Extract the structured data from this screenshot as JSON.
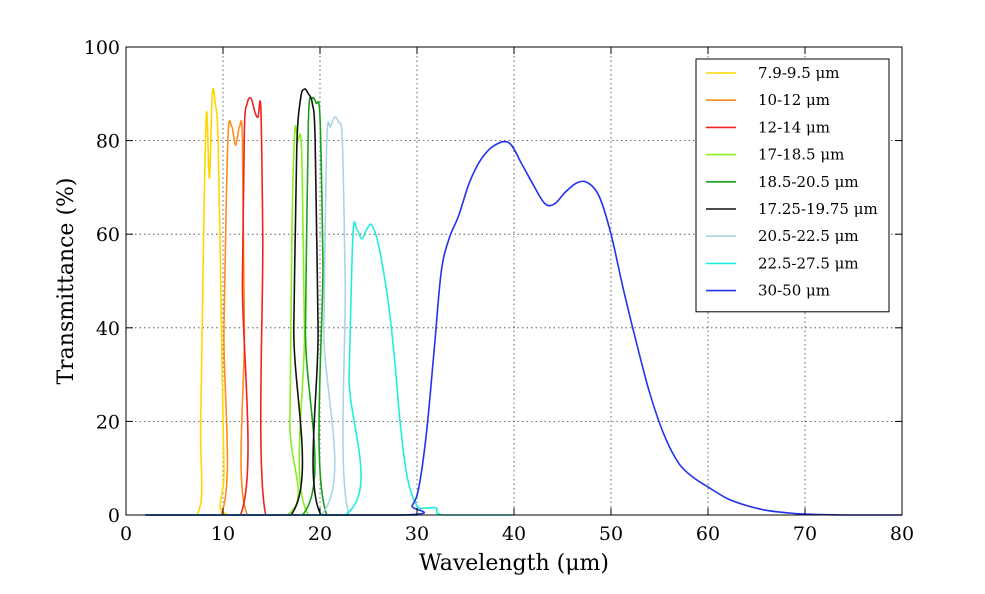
{
  "chart_data": {
    "type": "line",
    "xlabel": "Wavelength (μm)",
    "ylabel": "Transmittance (%)",
    "xlim": [
      0,
      80
    ],
    "ylim": [
      0,
      100
    ],
    "xticks": [
      0,
      10,
      20,
      30,
      40,
      50,
      60,
      70,
      80
    ],
    "yticks": [
      0,
      20,
      40,
      60,
      80,
      100
    ],
    "grid": true,
    "legend_position": "top-right",
    "series": [
      {
        "name": "7.9-9.5 μm",
        "color": "#ffd700",
        "x": [
          2,
          7.3,
          7.7,
          8.0,
          8.3,
          8.6,
          8.9,
          9.2,
          9.5,
          9.8,
          10.1,
          10.5,
          20
        ],
        "y": [
          0,
          0,
          20,
          60,
          86,
          72,
          90,
          88,
          80,
          45,
          10,
          0,
          0
        ]
      },
      {
        "name": "10-12 μm",
        "color": "#ff8c1a",
        "x": [
          2,
          9.8,
          10.1,
          10.5,
          10.9,
          11.3,
          11.7,
          12.0,
          12.2,
          12.5,
          20
        ],
        "y": [
          0,
          0,
          40,
          80,
          83,
          79,
          83,
          80,
          40,
          0,
          0
        ]
      },
      {
        "name": "12-14 μm",
        "color": "#ee2222",
        "x": [
          2,
          11.8,
          12.0,
          12.2,
          12.5,
          12.9,
          13.3,
          13.6,
          13.9,
          14.1,
          14.4,
          20
        ],
        "y": [
          0,
          0,
          50,
          82,
          88,
          89,
          86,
          85,
          87,
          60,
          0,
          0
        ]
      },
      {
        "name": "17-18.5 μm",
        "color": "#88ee22",
        "x": [
          2,
          16.6,
          16.9,
          17.1,
          17.4,
          17.7,
          18.1,
          18.4,
          18.8,
          30
        ],
        "y": [
          0,
          0,
          20,
          60,
          82,
          80,
          78,
          40,
          0,
          0
        ]
      },
      {
        "name": "18.5-20.5 μm",
        "color": "#1a9f1a",
        "x": [
          2,
          18.2,
          18.5,
          18.8,
          19.2,
          19.6,
          20.0,
          20.3,
          20.7,
          30
        ],
        "y": [
          0,
          0,
          40,
          84,
          89,
          88,
          85,
          55,
          0,
          0
        ]
      },
      {
        "name": "17.25-19.75 μm",
        "color": "#111111",
        "x": [
          2,
          17.0,
          17.3,
          17.6,
          18.0,
          18.4,
          18.8,
          19.2,
          19.5,
          19.8,
          20.1,
          30
        ],
        "y": [
          0,
          0,
          40,
          78,
          89,
          91,
          90,
          88,
          80,
          40,
          0,
          0
        ]
      },
      {
        "name": "20.5-22.5 μm",
        "color": "#aad4e6",
        "x": [
          2,
          20.1,
          20.4,
          20.7,
          21.1,
          21.5,
          21.9,
          22.3,
          22.6,
          23.0,
          30
        ],
        "y": [
          0,
          0,
          40,
          80,
          83,
          85,
          84,
          80,
          50,
          0,
          0
        ]
      },
      {
        "name": "22.5-27.5 μm",
        "color": "#22eedd",
        "x": [
          2,
          22.6,
          23.0,
          23.4,
          23.8,
          24.3,
          24.8,
          25.3,
          26.0,
          27.0,
          27.7,
          28.3,
          29.0,
          30.0,
          31.0,
          32.0,
          32.8,
          40
        ],
        "y": [
          0,
          0,
          30,
          60,
          61,
          59,
          61,
          62,
          58,
          46,
          33,
          19,
          8,
          2,
          1.5,
          1.5,
          0,
          0
        ]
      },
      {
        "name": "30-50 μm",
        "color": "#2233ee",
        "x": [
          2,
          28.5,
          29.5,
          30.2,
          31.0,
          31.8,
          32.5,
          33.3,
          34.3,
          35.4,
          36.6,
          38.0,
          39.5,
          40.8,
          42.0,
          43.2,
          44.2,
          45.3,
          46.5,
          47.6,
          48.8,
          50.0,
          51.3,
          52.6,
          54.0,
          55.5,
          57.0,
          58.5,
          60.0,
          62.0,
          64.0,
          66.0,
          68.0,
          70.0,
          74.0,
          80.0
        ],
        "y": [
          0,
          0,
          2,
          6,
          18,
          36,
          52,
          59,
          64,
          71,
          76,
          79,
          79.5,
          75,
          70.5,
          66.5,
          66.5,
          69,
          71,
          71,
          68,
          60,
          48,
          37,
          26,
          17,
          11,
          8,
          6,
          3.5,
          2,
          1,
          0.5,
          0.2,
          0,
          0
        ]
      }
    ]
  }
}
